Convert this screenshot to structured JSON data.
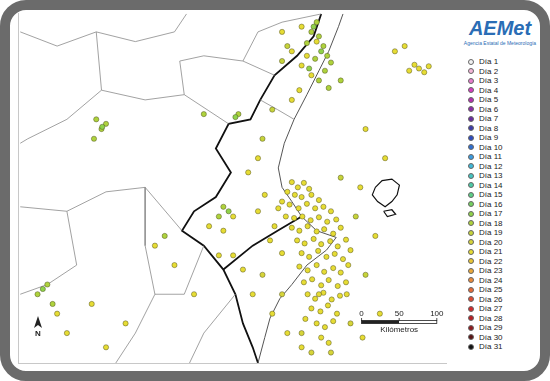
{
  "chart_data": {
    "type": "scatter",
    "tick_labels": false,
    "grid": false,
    "legend": "right",
    "xlim": [
      0,
      570
    ],
    "ylim": [
      0,
      468
    ],
    "logo": {
      "title": "AEMet",
      "subtitle": "Agencia Estatal de Meteorología"
    },
    "north": "N",
    "scale_bar": {
      "ticks": [
        0,
        50,
        100
      ],
      "label": "Kilómetros"
    },
    "coastline": [
      [
        432,
        467
      ],
      [
        426,
        450
      ],
      [
        413,
        417
      ],
      [
        400,
        391
      ],
      [
        384,
        359
      ],
      [
        367,
        326
      ],
      [
        354,
        294
      ],
      [
        346,
        261
      ],
      [
        351,
        235
      ],
      [
        364,
        216
      ],
      [
        377,
        196
      ],
      [
        397,
        177
      ],
      [
        423,
        168
      ],
      [
        410,
        151
      ],
      [
        384,
        131
      ],
      [
        364,
        105
      ],
      [
        348,
        86
      ],
      [
        335,
        60
      ],
      [
        328,
        34
      ],
      [
        319,
        0
      ]
    ],
    "region_border": [
      [
        [
          403,
          467
        ],
        [
          393,
          437
        ],
        [
          371,
          411
        ],
        [
          341,
          385
        ],
        [
          322,
          352
        ],
        [
          309,
          326
        ],
        [
          280,
          320
        ],
        [
          263,
          287
        ],
        [
          283,
          255
        ],
        [
          263,
          222
        ],
        [
          234,
          203
        ],
        [
          218,
          177
        ],
        [
          247,
          157
        ],
        [
          273,
          125
        ],
        [
          289,
          92
        ],
        [
          299,
          53
        ],
        [
          312,
          21
        ],
        [
          319,
          0
        ]
      ],
      [
        [
          273,
          125
        ],
        [
          312,
          157
        ],
        [
          345,
          177
        ],
        [
          377,
          196
        ]
      ]
    ],
    "borders": [
      [
        [
          3,
          443
        ],
        [
          52,
          424
        ],
        [
          104,
          443
        ],
        [
          156,
          430
        ],
        [
          208,
          443
        ],
        [
          224,
          467
        ]
      ],
      [
        [
          104,
          443
        ],
        [
          111,
          365
        ],
        [
          65,
          326
        ],
        [
          13,
          300
        ],
        [
          3,
          294
        ]
      ],
      [
        [
          111,
          365
        ],
        [
          169,
          352
        ],
        [
          221,
          359
        ],
        [
          280,
          320
        ]
      ],
      [
        [
          221,
          359
        ],
        [
          215,
          404
        ],
        [
          247,
          411
        ],
        [
          299,
          404
        ],
        [
          341,
          385
        ]
      ],
      [
        [
          299,
          404
        ],
        [
          319,
          443
        ],
        [
          351,
          456
        ],
        [
          403,
          467
        ]
      ],
      [
        [
          3,
          209
        ],
        [
          65,
          203
        ],
        [
          117,
          229
        ],
        [
          169,
          235
        ],
        [
          218,
          177
        ]
      ],
      [
        [
          65,
          203
        ],
        [
          78,
          131
        ],
        [
          39,
          105
        ],
        [
          3,
          92
        ]
      ],
      [
        [
          169,
          235
        ],
        [
          169,
          157
        ],
        [
          182,
          92
        ],
        [
          156,
          40
        ],
        [
          130,
          0
        ]
      ],
      [
        [
          247,
          157
        ],
        [
          221,
          92
        ],
        [
          182,
          92
        ]
      ],
      [
        [
          289,
          92
        ],
        [
          247,
          40
        ],
        [
          228,
          0
        ]
      ],
      [
        [
          322,
          352
        ],
        [
          345,
          339
        ],
        [
          367,
          326
        ]
      ]
    ],
    "islands": [
      [
        [
          475,
          235
        ],
        [
          484,
          244
        ],
        [
          497,
          246
        ],
        [
          507,
          238
        ],
        [
          504,
          225
        ],
        [
          497,
          216
        ],
        [
          488,
          209
        ],
        [
          478,
          216
        ],
        [
          471,
          225
        ]
      ],
      [
        [
          486,
          203
        ],
        [
          497,
          205
        ],
        [
          502,
          199
        ],
        [
          491,
          196
        ]
      ]
    ],
    "series": [
      {
        "name": "Día 1",
        "color": "#f2f2f2",
        "values": []
      },
      {
        "name": "Día 2",
        "color": "#f4b6d8",
        "values": []
      },
      {
        "name": "Día 3",
        "color": "#e77ccd",
        "values": []
      },
      {
        "name": "Día 4",
        "color": "#d63cc0",
        "values": []
      },
      {
        "name": "Día 5",
        "color": "#b62eb0",
        "values": []
      },
      {
        "name": "Día 6",
        "color": "#8e2ba8",
        "values": []
      },
      {
        "name": "Día 7",
        "color": "#6a2ca0",
        "values": []
      },
      {
        "name": "Día 8",
        "color": "#3d3ba8",
        "values": []
      },
      {
        "name": "Día 9",
        "color": "#2d4bbf",
        "values": []
      },
      {
        "name": "Día 10",
        "color": "#2f6fd0",
        "values": []
      },
      {
        "name": "Día 11",
        "color": "#3a9be0",
        "values": []
      },
      {
        "name": "Día 12",
        "color": "#3fb8d8",
        "values": []
      },
      {
        "name": "Día 13",
        "color": "#45c4c0",
        "values": []
      },
      {
        "name": "Día 14",
        "color": "#4ccaa6",
        "values": []
      },
      {
        "name": "Día 15",
        "color": "#5ccf86",
        "values": []
      },
      {
        "name": "Día 16",
        "color": "#74d060",
        "values": []
      },
      {
        "name": "Día 17",
        "color": "#8fd24a",
        "values": [
          [
            393,
            450
          ],
          [
            403,
            417
          ],
          [
            387,
            394
          ],
          [
            289,
            329
          ],
          [
            112,
            316
          ],
          [
            33,
            99
          ],
          [
            280,
            203
          ]
        ]
      },
      {
        "name": "Día 18",
        "color": "#aed23c",
        "values": [
          [
            390,
            443
          ],
          [
            400,
            437
          ],
          [
            406,
            424
          ],
          [
            411,
            411
          ],
          [
            416,
            402
          ],
          [
            408,
            391
          ],
          [
            400,
            378
          ],
          [
            395,
            407
          ],
          [
            384,
            428
          ],
          [
            247,
            333
          ],
          [
            293,
            333
          ],
          [
            104,
            326
          ],
          [
            111,
            313
          ],
          [
            101,
            300
          ],
          [
            117,
            320
          ],
          [
            39,
            105
          ],
          [
            26,
            92
          ],
          [
            46,
            79
          ],
          [
            273,
            209
          ],
          [
            267,
            196
          ],
          [
            195,
            170
          ],
          [
            429,
            378
          ],
          [
            413,
            368
          ],
          [
            397,
            456
          ]
        ]
      },
      {
        "name": "Día 19",
        "color": "#c6d33a",
        "values": [
          [
            351,
            404
          ],
          [
            358,
            424
          ],
          [
            338,
            339
          ],
          [
            325,
            300
          ],
          [
            429,
            248
          ],
          [
            449,
            196
          ],
          [
            462,
            118
          ]
        ]
      },
      {
        "name": "Día 20",
        "color": "#d6d43a",
        "values": [
          [
            377,
            40
          ],
          [
            390,
            14
          ],
          [
            416,
            14
          ],
          [
            442,
            53
          ],
          [
            351,
            92
          ],
          [
            325,
            118
          ]
        ]
      },
      {
        "name": "Día 21",
        "color": "#e6dc34",
        "values": [
          [
            364,
            242
          ],
          [
            372,
            235
          ],
          [
            380,
            241
          ],
          [
            387,
            233
          ],
          [
            358,
            229
          ],
          [
            368,
            225
          ],
          [
            377,
            222
          ],
          [
            390,
            225
          ],
          [
            400,
            218
          ],
          [
            351,
            216
          ],
          [
            361,
            212
          ],
          [
            373,
            207
          ],
          [
            384,
            213
          ],
          [
            395,
            207
          ],
          [
            406,
            209
          ],
          [
            416,
            203
          ],
          [
            356,
            196
          ],
          [
            367,
            194
          ],
          [
            378,
            196
          ],
          [
            389,
            191
          ],
          [
            400,
            195
          ],
          [
            411,
            189
          ],
          [
            423,
            192
          ],
          [
            364,
            181
          ],
          [
            374,
            177
          ],
          [
            385,
            183
          ],
          [
            397,
            176
          ],
          [
            407,
            179
          ],
          [
            419,
            173
          ],
          [
            429,
            181
          ],
          [
            371,
            164
          ],
          [
            381,
            160
          ],
          [
            393,
            166
          ],
          [
            403,
            159
          ],
          [
            415,
            163
          ],
          [
            425,
            156
          ],
          [
            436,
            165
          ],
          [
            377,
            147
          ],
          [
            387,
            142
          ],
          [
            399,
            150
          ],
          [
            410,
            142
          ],
          [
            421,
            146
          ],
          [
            432,
            139
          ],
          [
            374,
            129
          ],
          [
            385,
            124
          ],
          [
            397,
            131
          ],
          [
            407,
            122
          ],
          [
            419,
            127
          ],
          [
            429,
            121
          ],
          [
            439,
            131
          ],
          [
            380,
            108
          ],
          [
            391,
            112
          ],
          [
            403,
            104
          ],
          [
            413,
            111
          ],
          [
            425,
            103
          ],
          [
            436,
            108
          ],
          [
            385,
            92
          ],
          [
            395,
            86
          ],
          [
            406,
            94
          ],
          [
            417,
            85
          ],
          [
            428,
            90
          ],
          [
            390,
            73
          ],
          [
            402,
            69
          ],
          [
            412,
            77
          ],
          [
            424,
            66
          ],
          [
            397,
            53
          ],
          [
            408,
            48
          ],
          [
            419,
            56
          ],
          [
            403,
            34
          ],
          [
            413,
            27
          ],
          [
            400,
            92
          ],
          [
            382,
            59
          ],
          [
            437,
            92
          ],
          [
            442,
            151
          ],
          [
            341,
            183
          ],
          [
            335,
            164
          ],
          [
            351,
            147
          ],
          [
            346,
            207
          ],
          [
            328,
            225
          ],
          [
            319,
            203
          ],
          [
            455,
            235
          ],
          [
            475,
            170
          ],
          [
            481,
            66
          ],
          [
            458,
            34
          ],
          [
            488,
            274
          ],
          [
            462,
            313
          ],
          [
            501,
            417
          ],
          [
            514,
            424
          ],
          [
            377,
            398
          ],
          [
            384,
            411
          ],
          [
            390,
            385
          ],
          [
            374,
            365
          ],
          [
            364,
            352
          ],
          [
            319,
            274
          ],
          [
            306,
            255
          ],
          [
            286,
            196
          ],
          [
            273,
            177
          ],
          [
            267,
            144
          ],
          [
            299,
            125
          ],
          [
            312,
            92
          ],
          [
            338,
            66
          ],
          [
            358,
            40
          ],
          [
            377,
            21
          ],
          [
            52,
            66
          ],
          [
            65,
            40
          ],
          [
            98,
            79
          ],
          [
            117,
            21
          ],
          [
            143,
            53
          ],
          [
            234,
            92
          ],
          [
            208,
            131
          ],
          [
            182,
            157
          ],
          [
            254,
            183
          ],
          [
            286,
            144
          ],
          [
            364,
            417
          ],
          [
            351,
            443
          ],
          [
            377,
            450
          ],
          [
            397,
            430
          ],
          [
            520,
            391
          ],
          [
            533,
            394
          ],
          [
            546,
            397
          ],
          [
            540,
            389
          ],
          [
            527,
            399
          ]
        ]
      },
      {
        "name": "Día 22",
        "color": "#eac636",
        "values": []
      },
      {
        "name": "Día 23",
        "color": "#eba93a",
        "values": []
      },
      {
        "name": "Día 24",
        "color": "#ec8a3a",
        "values": []
      },
      {
        "name": "Día 25",
        "color": "#e86a36",
        "values": []
      },
      {
        "name": "Día 26",
        "color": "#e04a30",
        "values": []
      },
      {
        "name": "Día 27",
        "color": "#d42a2a",
        "values": []
      },
      {
        "name": "Día 28",
        "color": "#b81e22",
        "values": []
      },
      {
        "name": "Día 29",
        "color": "#8e1a1e",
        "values": []
      },
      {
        "name": "Día 30",
        "color": "#5a1414",
        "values": []
      },
      {
        "name": "Día 31",
        "color": "#111111",
        "values": []
      }
    ]
  }
}
